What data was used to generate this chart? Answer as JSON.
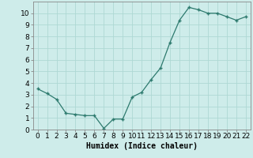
{
  "x": [
    0,
    1,
    2,
    3,
    4,
    5,
    6,
    7,
    8,
    9,
    10,
    11,
    12,
    13,
    14,
    15,
    16,
    17,
    18,
    19,
    20,
    21,
    22
  ],
  "y": [
    3.5,
    3.1,
    2.6,
    1.4,
    1.3,
    1.2,
    1.2,
    0.1,
    0.9,
    0.9,
    2.8,
    3.2,
    4.3,
    5.3,
    7.5,
    9.4,
    10.5,
    10.3,
    10.0,
    10.0,
    9.7,
    9.4,
    9.7
  ],
  "line_color": "#2d7a6e",
  "marker": "+",
  "marker_size": 3,
  "marker_edge_width": 1.0,
  "line_width": 0.9,
  "bg_color": "#ceecea",
  "grid_color": "#aed8d4",
  "xlabel": "Humidex (Indice chaleur)",
  "xlabel_fontsize": 7,
  "tick_fontsize": 6.5,
  "xlim": [
    -0.5,
    22.5
  ],
  "ylim": [
    0,
    11
  ],
  "yticks": [
    0,
    1,
    2,
    3,
    4,
    5,
    6,
    7,
    8,
    9,
    10
  ],
  "xticks": [
    0,
    1,
    2,
    3,
    4,
    5,
    6,
    7,
    8,
    9,
    10,
    11,
    12,
    13,
    14,
    15,
    16,
    17,
    18,
    19,
    20,
    21,
    22
  ]
}
